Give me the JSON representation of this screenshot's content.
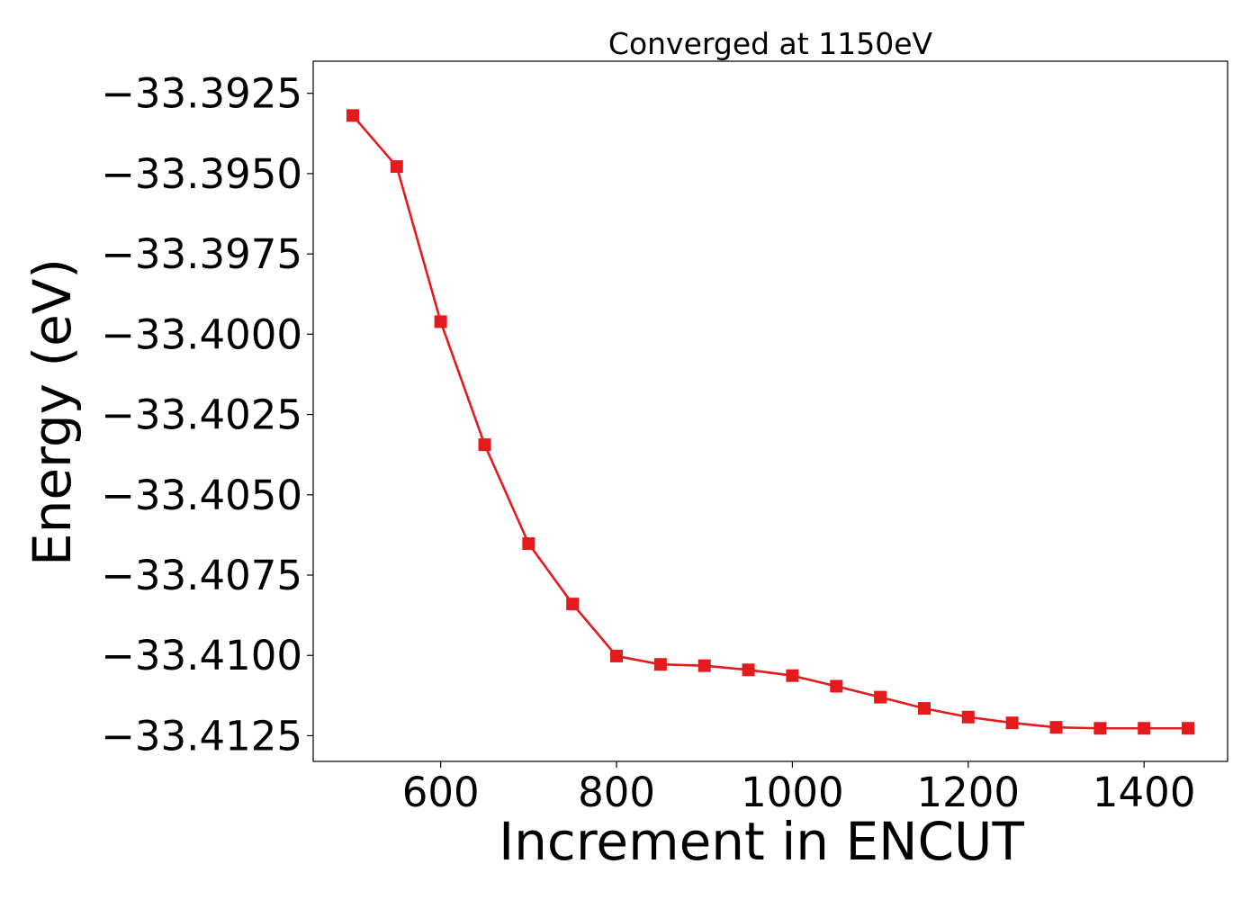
{
  "chart_data": {
    "type": "line",
    "title": "Converged at 1150eV",
    "xlabel": "Increment in ENCUT",
    "ylabel": "Energy (eV)",
    "xlim": [
      455,
      1495
    ],
    "ylim": [
      -33.4133,
      -33.3915
    ],
    "x_ticks": [
      600,
      800,
      1000,
      1200,
      1400
    ],
    "x_tick_labels": [
      "600",
      "800",
      "1000",
      "1200",
      "1400"
    ],
    "y_ticks": [
      -33.3925,
      -33.395,
      -33.3975,
      -33.4,
      -33.4025,
      -33.405,
      -33.4075,
      -33.41,
      -33.4125
    ],
    "y_tick_labels": [
      "−33.3925",
      "−33.3950",
      "−33.3975",
      "−33.4000",
      "−33.4025",
      "−33.4050",
      "−33.4075",
      "−33.4100",
      "−33.4125"
    ],
    "grid": false,
    "legend": "none",
    "series": [
      {
        "color": "#e41a1c",
        "marker": "square",
        "x": [
          500,
          550,
          600,
          650,
          700,
          750,
          800,
          850,
          900,
          950,
          1000,
          1050,
          1100,
          1150,
          1200,
          1250,
          1300,
          1350,
          1400,
          1450
        ],
        "y": [
          -33.39319,
          -33.39478,
          -33.39961,
          -33.40344,
          -33.40652,
          -33.4084,
          -33.41002,
          -33.41028,
          -33.41032,
          -33.41045,
          -33.41063,
          -33.41096,
          -33.4113,
          -33.41165,
          -33.41192,
          -33.4121,
          -33.41224,
          -33.41227,
          -33.41227,
          -33.41227
        ]
      }
    ]
  }
}
